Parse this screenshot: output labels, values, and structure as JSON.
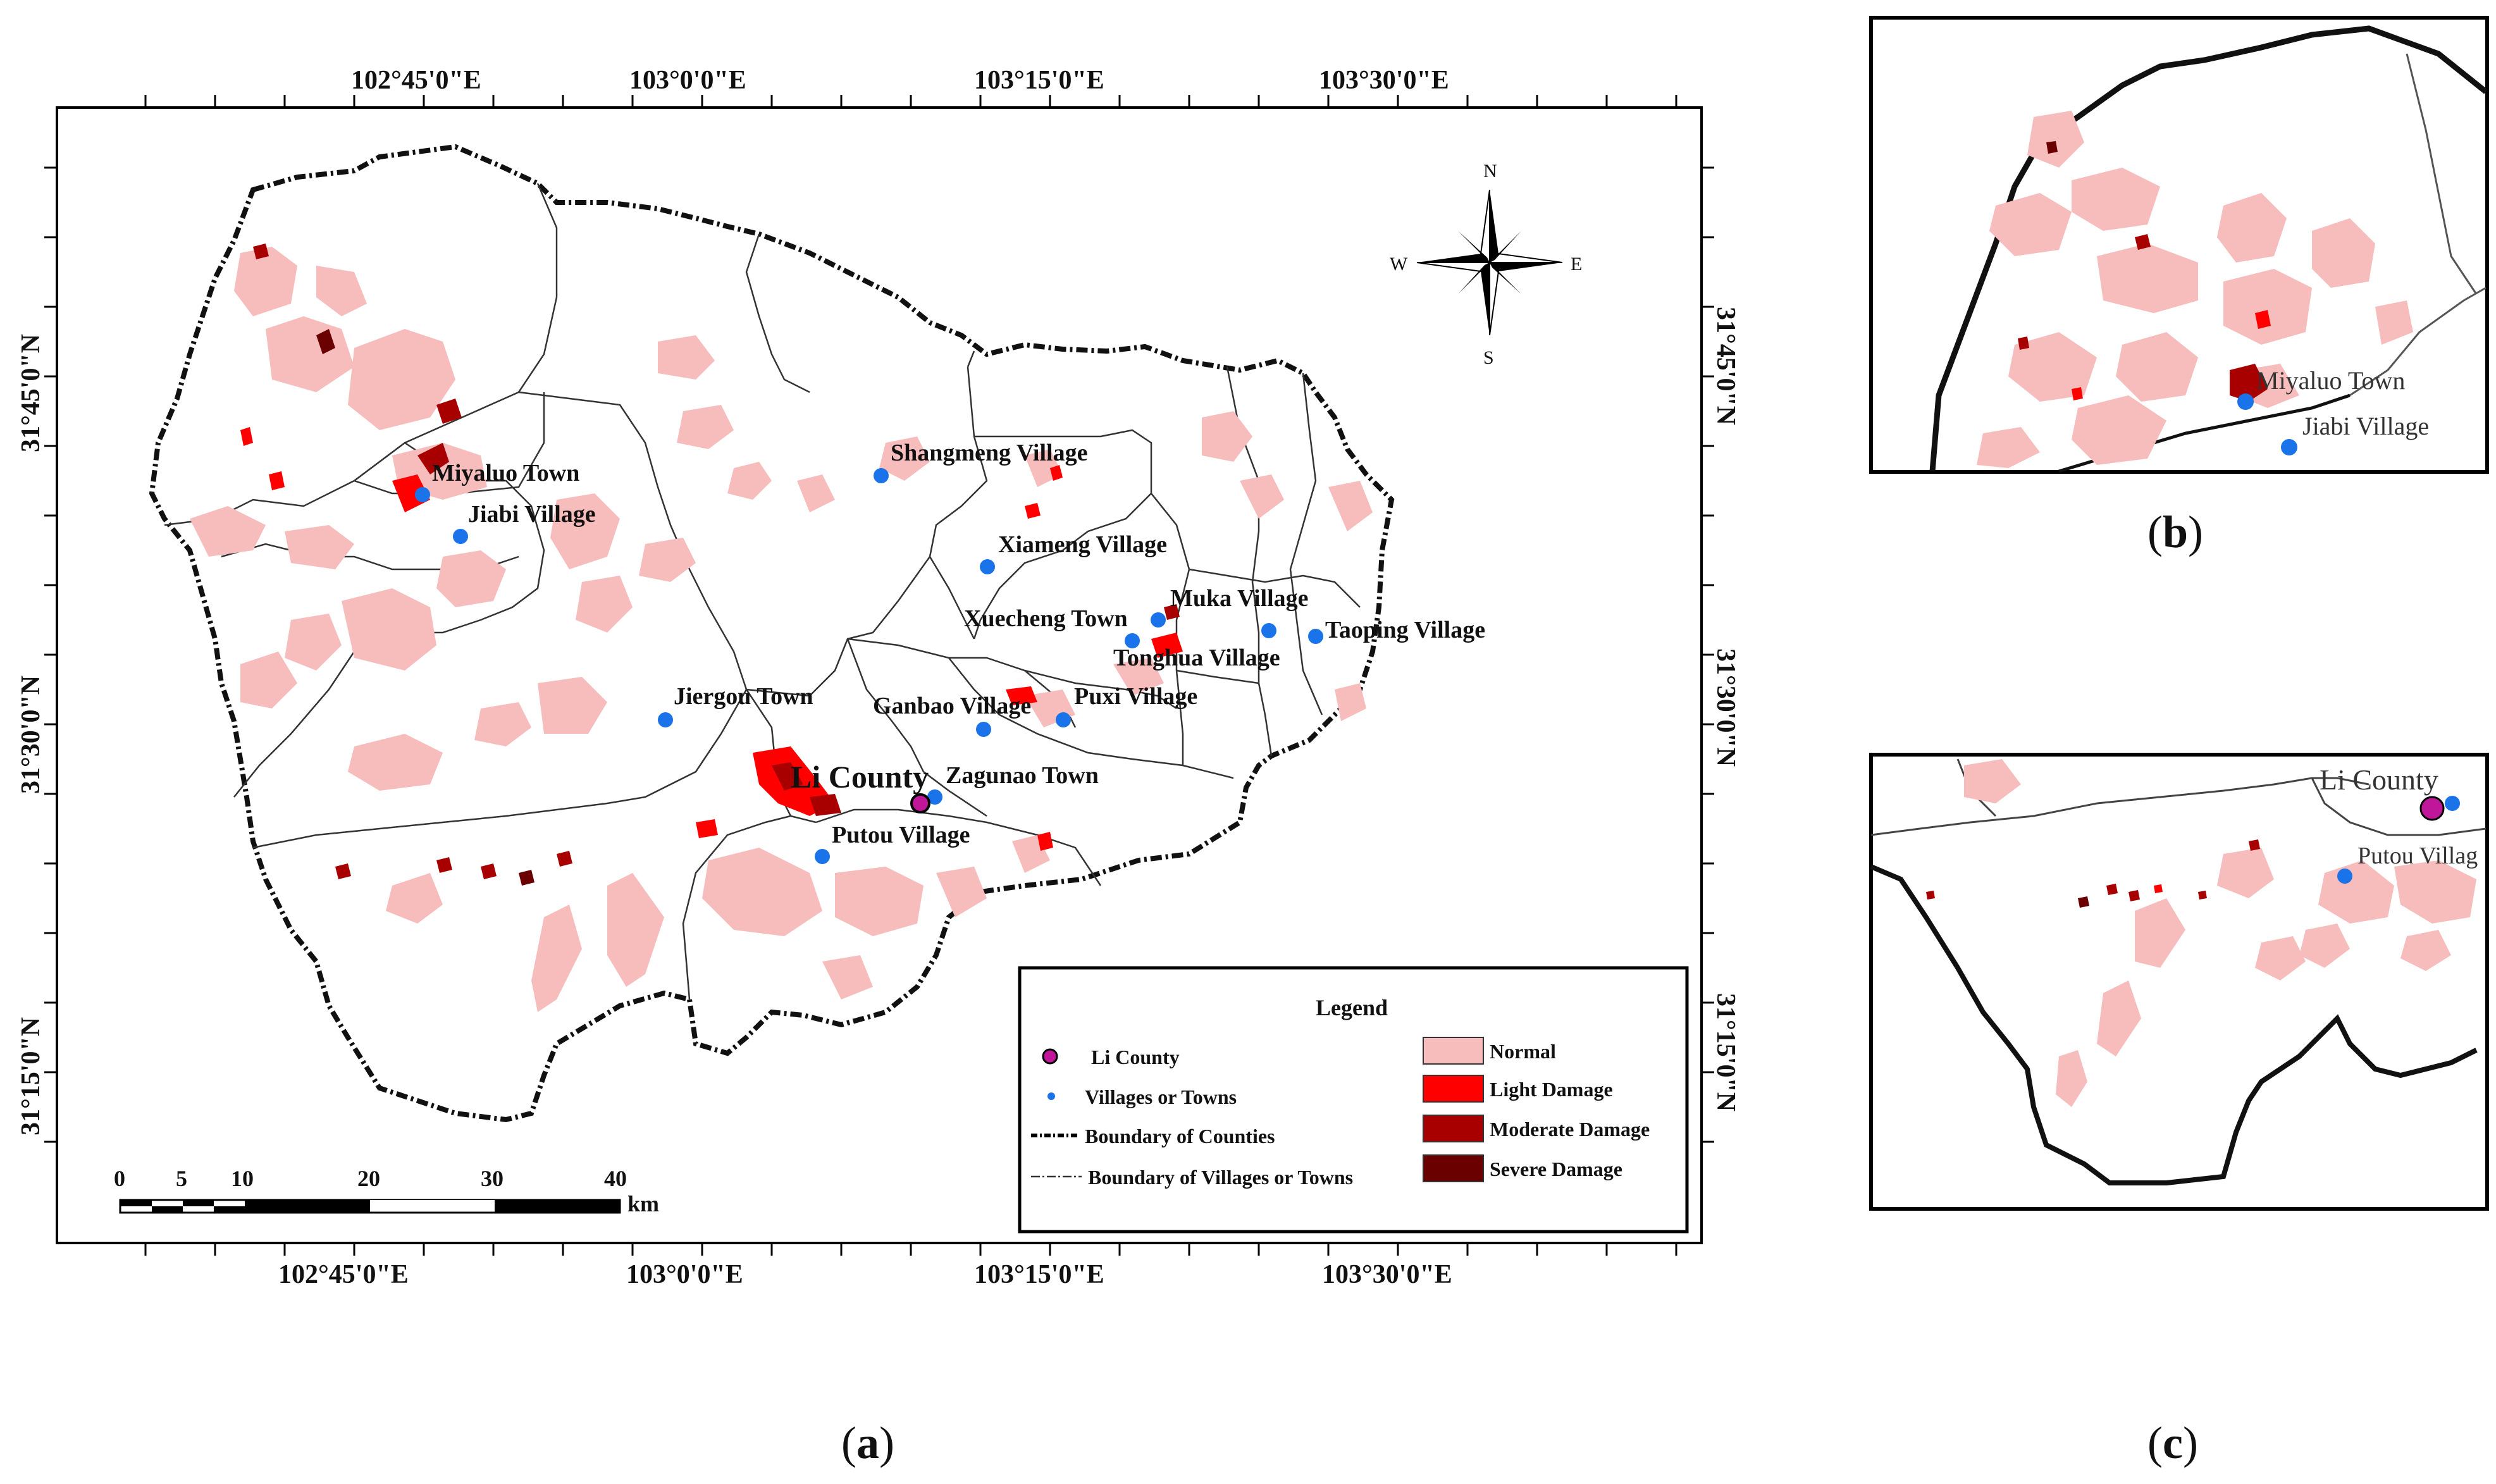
{
  "main_map": {
    "top_lon_labels": [
      "102°45'0\"E",
      "103°0'0\"E",
      "103°15'0\"E",
      "103°30'0\"E"
    ],
    "bottom_lon_labels": [
      "102°45'0\"E",
      "103°0'0\"E",
      "103°15'0\"E",
      "103°30'0\"E"
    ],
    "left_lat_labels": [
      "31°45'0\"N",
      "31°30'0\"N",
      "31°15'0\"N"
    ],
    "right_lat_labels": [
      "31°45'0\"N",
      "31°30'0\"N",
      "31°15'0\"N"
    ],
    "compass": {
      "n": "N",
      "s": "S",
      "e": "E",
      "w": "W"
    },
    "county_label": "Li County",
    "places": [
      "Miyaluo Town",
      "Jiabi Village",
      "Shangmeng Village",
      "Xiameng Village",
      "Xuecheng Town",
      "Muka Village",
      "Taoping Village",
      "Tonghua Village",
      "Jiergou Town",
      "Ganbao Village",
      "Puxi Village",
      "Zagunao Town",
      "Putou Village"
    ],
    "scale_bar": {
      "ticks": [
        "0",
        "5",
        "10",
        "20",
        "30",
        "40"
      ],
      "unit": "km"
    },
    "legend": {
      "title": "Legend",
      "symbols": [
        "Li County",
        "Villages or Towns",
        "Boundary of Counties",
        "Boundary of Villages or Towns"
      ],
      "classes": [
        {
          "label": "Normal",
          "color": "#f7bcbc"
        },
        {
          "label": "Light Damage",
          "color": "#ff0000"
        },
        {
          "label": "Moderate Damage",
          "color": "#a80000"
        },
        {
          "label": "Severe Damage",
          "color": "#6b0000"
        }
      ]
    }
  },
  "inset_b": {
    "places": [
      "Miyaluo Town",
      "Jiabi Village"
    ]
  },
  "inset_c": {
    "places": [
      "Li County",
      "Putou Villag"
    ]
  },
  "panel_labels": {
    "a": "a",
    "b": "b",
    "c": "c"
  },
  "colors": {
    "village": "#1a73e8",
    "county": "#c0179a",
    "boundary": "#000000"
  }
}
